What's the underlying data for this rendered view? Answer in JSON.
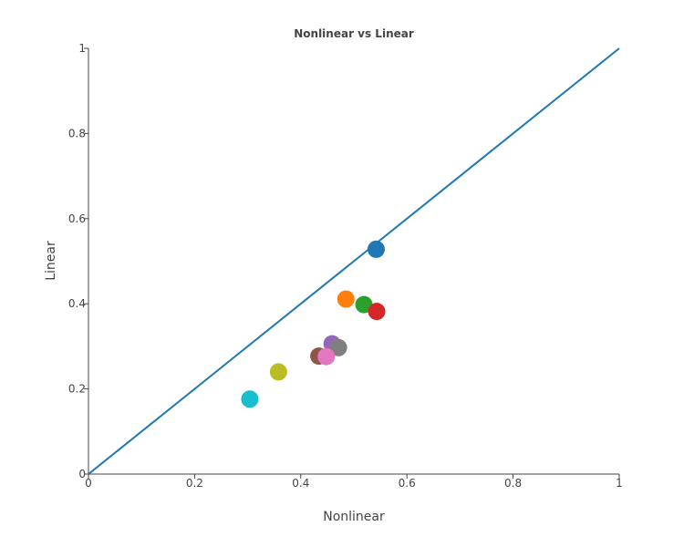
{
  "chart_data": {
    "type": "scatter",
    "title": "Nonlinear vs Linear",
    "xlabel": "Nonlinear",
    "ylabel": "Linear",
    "xlim": [
      0,
      1
    ],
    "ylim": [
      0,
      1
    ],
    "xticks": [
      "0",
      "0.2",
      "0.4",
      "0.6",
      "0.8",
      "1"
    ],
    "yticks": [
      "0",
      "0.2",
      "0.4",
      "0.6",
      "0.8",
      "1"
    ],
    "grid": false,
    "legend": "none",
    "reference_line": {
      "x": [
        0,
        1
      ],
      "y": [
        0,
        1
      ],
      "color": "#1f77b4"
    },
    "points": [
      {
        "x": 0.542,
        "y": 0.528,
        "color": "#1f77b4"
      },
      {
        "x": 0.485,
        "y": 0.411,
        "color": "#ff7f0e"
      },
      {
        "x": 0.519,
        "y": 0.398,
        "color": "#2ca02c"
      },
      {
        "x": 0.543,
        "y": 0.382,
        "color": "#d62728"
      },
      {
        "x": 0.459,
        "y": 0.306,
        "color": "#9467bd"
      },
      {
        "x": 0.471,
        "y": 0.297,
        "color": "#7f7f7f"
      },
      {
        "x": 0.434,
        "y": 0.277,
        "color": "#8c564b"
      },
      {
        "x": 0.448,
        "y": 0.276,
        "color": "#e377c2"
      },
      {
        "x": 0.358,
        "y": 0.24,
        "color": "#bcbd22"
      },
      {
        "x": 0.304,
        "y": 0.176,
        "color": "#17becf"
      }
    ]
  }
}
